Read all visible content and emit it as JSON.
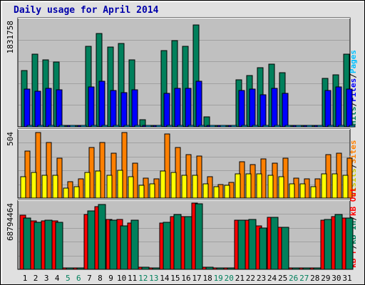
{
  "title": "Daily usage for April 2014",
  "colors": {
    "background": "#e0e0e0",
    "plot_background": "#c0c0c0",
    "gridline": "#a0a0a0",
    "hits": "#00805c",
    "files": "#0000ff",
    "pages": "#00c0ff",
    "visits": "#ffff00",
    "sites": "#ff8000",
    "kb_in": "#00805c",
    "kb_out": "#ff0000",
    "kb_f": "#ff0000",
    "weekday_label": "#000000",
    "weekend_label": "#00805c"
  },
  "x_labels": [
    "1",
    "2",
    "3",
    "4",
    "5",
    "6",
    "7",
    "8",
    "9",
    "10",
    "11",
    "12",
    "13",
    "14",
    "15",
    "16",
    "17",
    "18",
    "19",
    "20",
    "21",
    "22",
    "23",
    "24",
    "25",
    "26",
    "27",
    "28",
    "29",
    "30",
    "31"
  ],
  "weekend_days": [
    "5",
    "6",
    "12",
    "13",
    "19",
    "20",
    "26",
    "27"
  ],
  "chart_data": [
    {
      "type": "bar",
      "name": "hits-files-pages",
      "categories": [
        "1",
        "2",
        "3",
        "4",
        "5",
        "6",
        "7",
        "8",
        "9",
        "10",
        "11",
        "12",
        "13",
        "14",
        "15",
        "16",
        "17",
        "18",
        "19",
        "20",
        "21",
        "22",
        "23",
        "24",
        "25",
        "26",
        "27",
        "28",
        "29",
        "30",
        "31"
      ],
      "ymax_label": "1831758",
      "ylim": [
        0,
        1831758
      ],
      "right_labels": [
        {
          "text": "Hits",
          "color": "#00805c"
        },
        {
          "text": "/",
          "color": "#000000"
        },
        {
          "text": "Files",
          "color": "#0000ff"
        },
        {
          "text": "/",
          "color": "#000000"
        },
        {
          "text": "Pages",
          "color": "#00c0ff"
        }
      ],
      "series": [
        {
          "key": "hits",
          "color": "#00805c",
          "values": [
            966000,
            1257000,
            1159000,
            1120000,
            14000,
            14000,
            1394000,
            1610000,
            1374000,
            1433000,
            1159000,
            127000,
            10000,
            1315000,
            1492000,
            1394000,
            1761000,
            177000,
            10000,
            10000,
            811000,
            889000,
            1022000,
            1081000,
            933000,
            10000,
            10000,
            10000,
            838000,
            894000,
            1257000
          ]
        },
        {
          "key": "files",
          "color": "#0000ff",
          "values": [
            651000,
            612000,
            660000,
            638000,
            10000,
            10000,
            690000,
            788000,
            631000,
            584000,
            640000,
            10000,
            10000,
            581000,
            660000,
            670000,
            790000,
            13000,
            6000,
            6000,
            629000,
            649000,
            549000,
            670000,
            582000,
            6000,
            6000,
            6000,
            632000,
            691000,
            650000
          ]
        },
        {
          "key": "pages",
          "color": "#00c0ff",
          "values": [
            15000,
            15000,
            15000,
            15000,
            6000,
            6000,
            15000,
            15000,
            15000,
            15000,
            15000,
            6000,
            6000,
            15000,
            15000,
            15000,
            15000,
            6000,
            5000,
            5000,
            15000,
            15000,
            15000,
            15000,
            15000,
            5000,
            5000,
            5000,
            15000,
            15000,
            15000
          ]
        }
      ]
    },
    {
      "type": "bar",
      "name": "visits-sites",
      "categories": [
        "1",
        "2",
        "3",
        "4",
        "5",
        "6",
        "7",
        "8",
        "9",
        "10",
        "11",
        "12",
        "13",
        "14",
        "15",
        "16",
        "17",
        "18",
        "19",
        "20",
        "21",
        "22",
        "23",
        "24",
        "25",
        "26",
        "27",
        "28",
        "29",
        "30",
        "31"
      ],
      "ymax_label": "504",
      "ylim": [
        0,
        504
      ],
      "right_labels": [
        {
          "text": "Visits",
          "color": "#cccc00"
        },
        {
          "text": "/",
          "color": "#000000"
        },
        {
          "text": "Sites",
          "color": "#ff8000"
        }
      ],
      "series": [
        {
          "key": "sites",
          "color": "#ff8000",
          "values": [
            355,
            498,
            425,
            304,
            126,
            144,
            383,
            425,
            340,
            498,
            267,
            152,
            144,
            489,
            383,
            330,
            319,
            162,
            104,
            120,
            277,
            257,
            296,
            267,
            304,
            152,
            144,
            144,
            330,
            340,
            304
          ]
        },
        {
          "key": "visits",
          "color": "#ffff00",
          "values": [
            165,
            194,
            175,
            175,
            76,
            87,
            194,
            204,
            175,
            214,
            165,
            98,
            107,
            204,
            194,
            175,
            175,
            107,
            87,
            96,
            185,
            185,
            185,
            175,
            165,
            107,
            107,
            87,
            185,
            185,
            175
          ]
        }
      ]
    },
    {
      "type": "bar",
      "name": "kbytes",
      "categories": [
        "1",
        "2",
        "3",
        "4",
        "5",
        "6",
        "7",
        "8",
        "9",
        "10",
        "11",
        "12",
        "13",
        "14",
        "15",
        "16",
        "17",
        "18",
        "19",
        "20",
        "21",
        "22",
        "23",
        "24",
        "25",
        "26",
        "27",
        "28",
        "29",
        "30",
        "31"
      ],
      "ymax_label": "68794464",
      "ylim": [
        0,
        68794464
      ],
      "right_labels": [
        {
          "text": "kB F",
          "color": "#ff0000"
        },
        {
          "text": "/",
          "color": "#000000"
        },
        {
          "text": "kB In",
          "color": "#00805c"
        },
        {
          "text": "/",
          "color": "#000000"
        },
        {
          "text": "kB Out",
          "color": "#ff0000"
        }
      ],
      "series": [
        {
          "key": "kb_f",
          "color": "#ff0000",
          "values": [
            56000000,
            50000000,
            50000000,
            50000000,
            500000,
            500000,
            57000000,
            65000000,
            52000000,
            52000000,
            48000000,
            2000000,
            1000000,
            48000000,
            55000000,
            55000000,
            68794464,
            2000000,
            500000,
            500000,
            51000000,
            51000000,
            45000000,
            54000000,
            44000000,
            500000,
            500000,
            500000,
            51000000,
            55000000,
            53000000
          ]
        },
        {
          "key": "kb_in",
          "color": "#00805c",
          "values": [
            53000000,
            49000000,
            51000000,
            49000000,
            500000,
            500000,
            61000000,
            67000000,
            51000000,
            45000000,
            51000000,
            2000000,
            1000000,
            49000000,
            57000000,
            55000000,
            68000000,
            2000000,
            500000,
            500000,
            51000000,
            52000000,
            43000000,
            54000000,
            44000000,
            500000,
            500000,
            500000,
            52000000,
            57000000,
            53000000
          ]
        }
      ]
    }
  ]
}
